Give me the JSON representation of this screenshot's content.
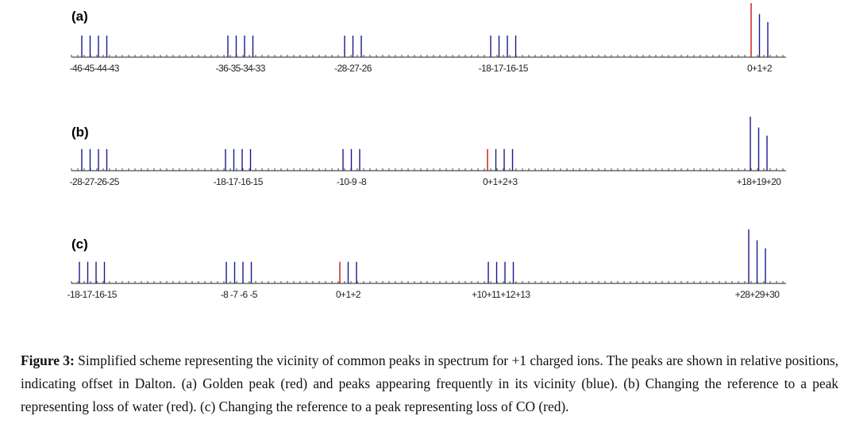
{
  "panels": [
    {
      "label": "(a)",
      "groups": [
        {
          "label": "-46-45-44-43",
          "peaks": [
            {
              "offset": -46,
              "color": "#1a1a8a",
              "height": 0.4
            },
            {
              "offset": -45,
              "color": "#1a1a8a",
              "height": 0.4
            },
            {
              "offset": -44,
              "color": "#1a1a8a",
              "height": 0.4
            },
            {
              "offset": -43,
              "color": "#1a1a8a",
              "height": 0.4
            }
          ]
        },
        {
          "label": "-36-35-34-33",
          "peaks": [
            {
              "offset": -36,
              "color": "#1a1a8a",
              "height": 0.4
            },
            {
              "offset": -35,
              "color": "#1a1a8a",
              "height": 0.4
            },
            {
              "offset": -34,
              "color": "#1a1a8a",
              "height": 0.4
            },
            {
              "offset": -33,
              "color": "#1a1a8a",
              "height": 0.4
            }
          ]
        },
        {
          "label": "-28-27-26",
          "peaks": [
            {
              "offset": -28,
              "color": "#1a1a8a",
              "height": 0.4
            },
            {
              "offset": -27,
              "color": "#1a1a8a",
              "height": 0.4
            },
            {
              "offset": -26,
              "color": "#1a1a8a",
              "height": 0.4
            }
          ]
        },
        {
          "label": "-18-17-16-15",
          "peaks": [
            {
              "offset": -18,
              "color": "#1a1a8a",
              "height": 0.4
            },
            {
              "offset": -17,
              "color": "#1a1a8a",
              "height": 0.4
            },
            {
              "offset": -16,
              "color": "#1a1a8a",
              "height": 0.4
            },
            {
              "offset": -15,
              "color": "#1a1a8a",
              "height": 0.4
            }
          ]
        },
        {
          "label": "0+1+2",
          "peaks": [
            {
              "offset": 0,
              "color": "#cc1111",
              "height": 1.0
            },
            {
              "offset": 1,
              "color": "#1a1a8a",
              "height": 0.8
            },
            {
              "offset": 2,
              "color": "#1a1a8a",
              "height": 0.65
            }
          ]
        }
      ]
    },
    {
      "label": "(b)",
      "groups": [
        {
          "label": "-28-27-26-25",
          "peaks": [
            {
              "offset": -28,
              "color": "#1a1a8a",
              "height": 0.4
            },
            {
              "offset": -27,
              "color": "#1a1a8a",
              "height": 0.4
            },
            {
              "offset": -26,
              "color": "#1a1a8a",
              "height": 0.4
            },
            {
              "offset": -25,
              "color": "#1a1a8a",
              "height": 0.4
            }
          ]
        },
        {
          "label": "-18-17-16-15",
          "peaks": [
            {
              "offset": -18,
              "color": "#1a1a8a",
              "height": 0.4
            },
            {
              "offset": -17,
              "color": "#1a1a8a",
              "height": 0.4
            },
            {
              "offset": -16,
              "color": "#1a1a8a",
              "height": 0.4
            },
            {
              "offset": -15,
              "color": "#1a1a8a",
              "height": 0.4
            }
          ]
        },
        {
          "label": "-10-9 -8",
          "peaks": [
            {
              "offset": -10,
              "color": "#1a1a8a",
              "height": 0.4
            },
            {
              "offset": -9,
              "color": "#1a1a8a",
              "height": 0.4
            },
            {
              "offset": -8,
              "color": "#1a1a8a",
              "height": 0.4
            }
          ]
        },
        {
          "label": "0+1+2+3",
          "peaks": [
            {
              "offset": 0,
              "color": "#cc1111",
              "height": 0.4
            },
            {
              "offset": 1,
              "color": "#1a1a8a",
              "height": 0.4
            },
            {
              "offset": 2,
              "color": "#1a1a8a",
              "height": 0.4
            },
            {
              "offset": 3,
              "color": "#1a1a8a",
              "height": 0.4
            }
          ]
        },
        {
          "label": "+18+19+20",
          "peaks": [
            {
              "offset": 18,
              "color": "#1a1a8a",
              "height": 1.0
            },
            {
              "offset": 19,
              "color": "#1a1a8a",
              "height": 0.8
            },
            {
              "offset": 20,
              "color": "#1a1a8a",
              "height": 0.65
            }
          ]
        }
      ]
    },
    {
      "label": "(c)",
      "groups": [
        {
          "label": "-18-17-16-15",
          "peaks": [
            {
              "offset": -18,
              "color": "#1a1a8a",
              "height": 0.4
            },
            {
              "offset": -17,
              "color": "#1a1a8a",
              "height": 0.4
            },
            {
              "offset": -16,
              "color": "#1a1a8a",
              "height": 0.4
            },
            {
              "offset": -15,
              "color": "#1a1a8a",
              "height": 0.4
            }
          ]
        },
        {
          "label": "-8 -7 -6 -5",
          "peaks": [
            {
              "offset": -8,
              "color": "#1a1a8a",
              "height": 0.4
            },
            {
              "offset": -7,
              "color": "#1a1a8a",
              "height": 0.4
            },
            {
              "offset": -6,
              "color": "#1a1a8a",
              "height": 0.4
            },
            {
              "offset": -5,
              "color": "#1a1a8a",
              "height": 0.4
            }
          ]
        },
        {
          "label": "0+1+2",
          "peaks": [
            {
              "offset": 0,
              "color": "#cc1111",
              "height": 0.4
            },
            {
              "offset": 1,
              "color": "#1a1a8a",
              "height": 0.4
            },
            {
              "offset": 2,
              "color": "#1a1a8a",
              "height": 0.4
            }
          ]
        },
        {
          "label": "+10+11+12+13",
          "peaks": [
            {
              "offset": 10,
              "color": "#1a1a8a",
              "height": 0.4
            },
            {
              "offset": 11,
              "color": "#1a1a8a",
              "height": 0.4
            },
            {
              "offset": 12,
              "color": "#1a1a8a",
              "height": 0.4
            },
            {
              "offset": 13,
              "color": "#1a1a8a",
              "height": 0.4
            }
          ]
        },
        {
          "label": "+28+29+30",
          "peaks": [
            {
              "offset": 28,
              "color": "#1a1a8a",
              "height": 1.0
            },
            {
              "offset": 29,
              "color": "#1a1a8a",
              "height": 0.8
            },
            {
              "offset": 30,
              "color": "#1a1a8a",
              "height": 0.65
            }
          ]
        }
      ]
    }
  ],
  "caption": {
    "label": "Figure 3:",
    "text": " Simplified scheme representing the vicinity of common peaks in spectrum for +1 charged ions. The peaks are shown in relative positions, indicating offset in Dalton. (a) Golden peak (red) and peaks appearing frequently in its vicinity (blue). (b) Changing the reference to a peak representing loss of water (red). (c) Changing the reference to a peak representing loss of CO (red)."
  }
}
